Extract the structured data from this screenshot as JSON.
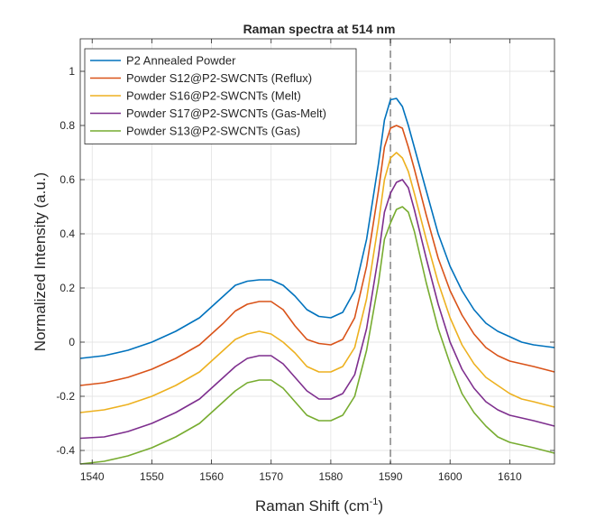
{
  "chart_data": {
    "type": "line",
    "title": "Raman spectra at 514 nm",
    "xlabel": "Raman Shift (cm",
    "xlabel_sup": "-1",
    "xlabel_close": ")",
    "ylabel": "Normalized Intensity (a.u.)",
    "xlim": [
      1538,
      1617.5
    ],
    "ylim": [
      -0.45,
      1.12
    ],
    "xticks": [
      1540,
      1550,
      1560,
      1570,
      1580,
      1590,
      1600,
      1610
    ],
    "yticks": [
      -0.4,
      -0.2,
      0,
      0.2,
      0.4,
      0.6,
      0.8,
      1
    ],
    "xtick_labels": [
      "1540",
      "1550",
      "1560",
      "1570",
      "1580",
      "1590",
      "1600",
      "1610"
    ],
    "ytick_labels": [
      "-0.4",
      "-0.2",
      "0",
      "0.2",
      "0.4",
      "0.6",
      "0.8",
      "1"
    ],
    "grid": true,
    "legend_position": "top-left",
    "reference_line": {
      "x": 1590,
      "style": "dashed",
      "color": "#8c8c8c"
    },
    "x": [
      1538,
      1542,
      1546,
      1550,
      1554,
      1558,
      1562,
      1564,
      1566,
      1568,
      1570,
      1572,
      1574,
      1576,
      1578,
      1580,
      1582,
      1584,
      1586,
      1588,
      1589,
      1590,
      1591,
      1592,
      1593,
      1594,
      1596,
      1598,
      1600,
      1602,
      1604,
      1606,
      1608,
      1610,
      1612,
      1614,
      1617.5
    ],
    "series": [
      {
        "name": "P2 Annealed Powder",
        "color": "#0072BD",
        "values": [
          -0.06,
          -0.05,
          -0.03,
          0.0,
          0.04,
          0.09,
          0.17,
          0.21,
          0.225,
          0.23,
          0.23,
          0.21,
          0.17,
          0.12,
          0.095,
          0.09,
          0.11,
          0.19,
          0.38,
          0.66,
          0.82,
          0.895,
          0.9,
          0.87,
          0.8,
          0.72,
          0.56,
          0.4,
          0.28,
          0.19,
          0.12,
          0.07,
          0.04,
          0.02,
          0.0,
          -0.01,
          -0.02
        ]
      },
      {
        "name": "Powder S12@P2-SWCNTs (Reflux)",
        "color": "#D95319",
        "values": [
          -0.16,
          -0.15,
          -0.13,
          -0.1,
          -0.06,
          -0.01,
          0.07,
          0.115,
          0.14,
          0.15,
          0.15,
          0.12,
          0.06,
          0.01,
          -0.005,
          -0.01,
          0.01,
          0.09,
          0.28,
          0.56,
          0.72,
          0.79,
          0.8,
          0.79,
          0.72,
          0.64,
          0.47,
          0.31,
          0.19,
          0.1,
          0.03,
          -0.02,
          -0.05,
          -0.07,
          -0.08,
          -0.09,
          -0.11
        ]
      },
      {
        "name": "Powder S16@P2-SWCNTs (Melt)",
        "color": "#EDB120",
        "values": [
          -0.26,
          -0.25,
          -0.23,
          -0.2,
          -0.16,
          -0.11,
          -0.03,
          0.01,
          0.03,
          0.04,
          0.03,
          0.0,
          -0.04,
          -0.09,
          -0.11,
          -0.11,
          -0.09,
          -0.02,
          0.16,
          0.44,
          0.6,
          0.68,
          0.7,
          0.68,
          0.63,
          0.55,
          0.38,
          0.22,
          0.09,
          -0.01,
          -0.08,
          -0.13,
          -0.16,
          -0.19,
          -0.21,
          -0.22,
          -0.24
        ]
      },
      {
        "name": "Powder S17@P2-SWCNTs (Gas-Melt)",
        "color": "#7E2F8E",
        "values": [
          -0.355,
          -0.35,
          -0.33,
          -0.3,
          -0.26,
          -0.21,
          -0.13,
          -0.09,
          -0.06,
          -0.05,
          -0.05,
          -0.08,
          -0.13,
          -0.18,
          -0.21,
          -0.21,
          -0.19,
          -0.12,
          0.05,
          0.32,
          0.48,
          0.55,
          0.59,
          0.6,
          0.57,
          0.49,
          0.31,
          0.14,
          0.0,
          -0.1,
          -0.17,
          -0.22,
          -0.25,
          -0.27,
          -0.28,
          -0.29,
          -0.31
        ]
      },
      {
        "name": "Powder S13@P2-SWCNTs (Gas)",
        "color": "#77AC30",
        "values": [
          -0.45,
          -0.44,
          -0.42,
          -0.39,
          -0.35,
          -0.3,
          -0.22,
          -0.18,
          -0.15,
          -0.14,
          -0.14,
          -0.17,
          -0.22,
          -0.27,
          -0.29,
          -0.29,
          -0.27,
          -0.2,
          -0.03,
          0.22,
          0.38,
          0.44,
          0.49,
          0.5,
          0.48,
          0.41,
          0.22,
          0.05,
          -0.08,
          -0.19,
          -0.26,
          -0.31,
          -0.35,
          -0.37,
          -0.38,
          -0.39,
          -0.41
        ]
      }
    ]
  }
}
